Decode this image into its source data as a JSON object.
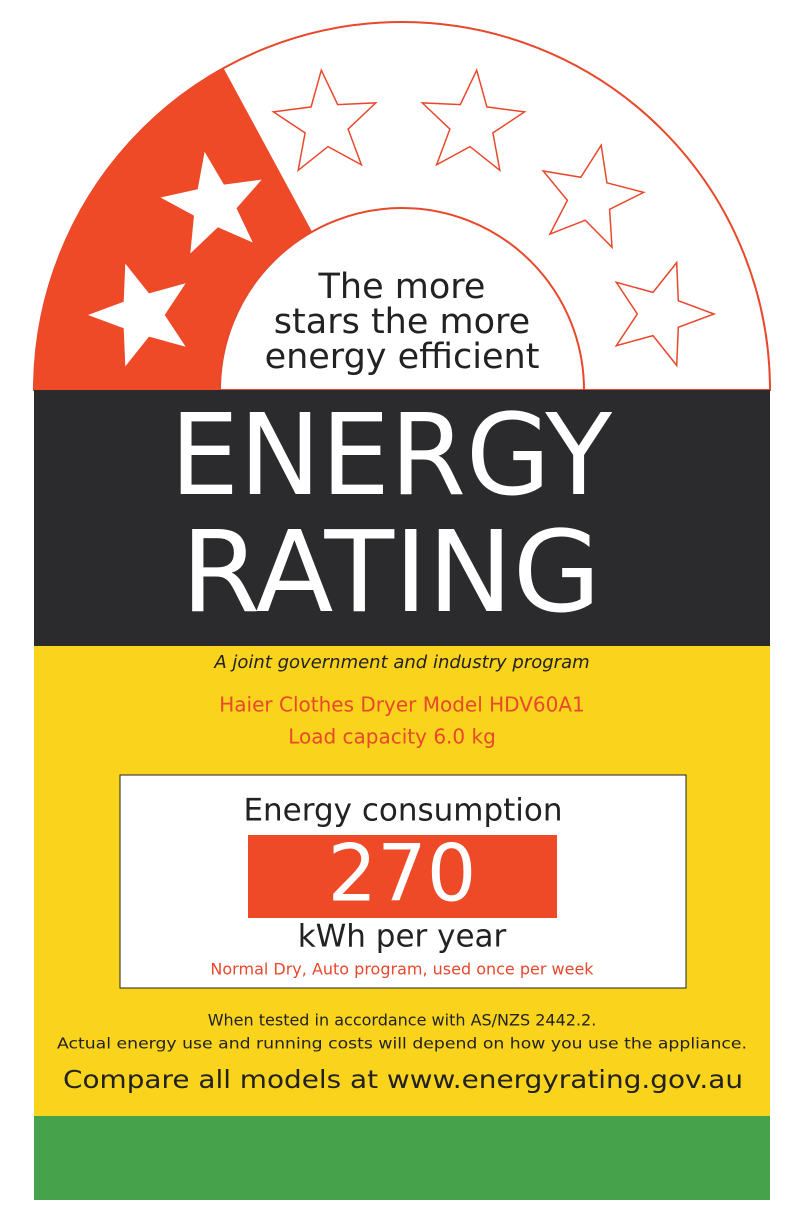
{
  "header": {
    "tagline": [
      "The more",
      "stars the more",
      "energy efficient"
    ],
    "title": [
      "ENERGY",
      "RATING"
    ]
  },
  "program": "A joint government and industry program",
  "product": {
    "model": "Haier Clothes Dryer Model HDV60A1",
    "capacity": "Load capacity 6.0 kg"
  },
  "consumption": {
    "heading": "Energy consumption",
    "value": 270,
    "unit": "kWh per year",
    "note": "Normal Dry, Auto program, used once per week"
  },
  "footer": {
    "standard": "When tested in accordance with AS/NZS 2442.2.",
    "disclaimer": "Actual energy use and running costs will depend on how you use the appliance.",
    "website": "Compare all models at www.energyrating.gov.au"
  }
}
